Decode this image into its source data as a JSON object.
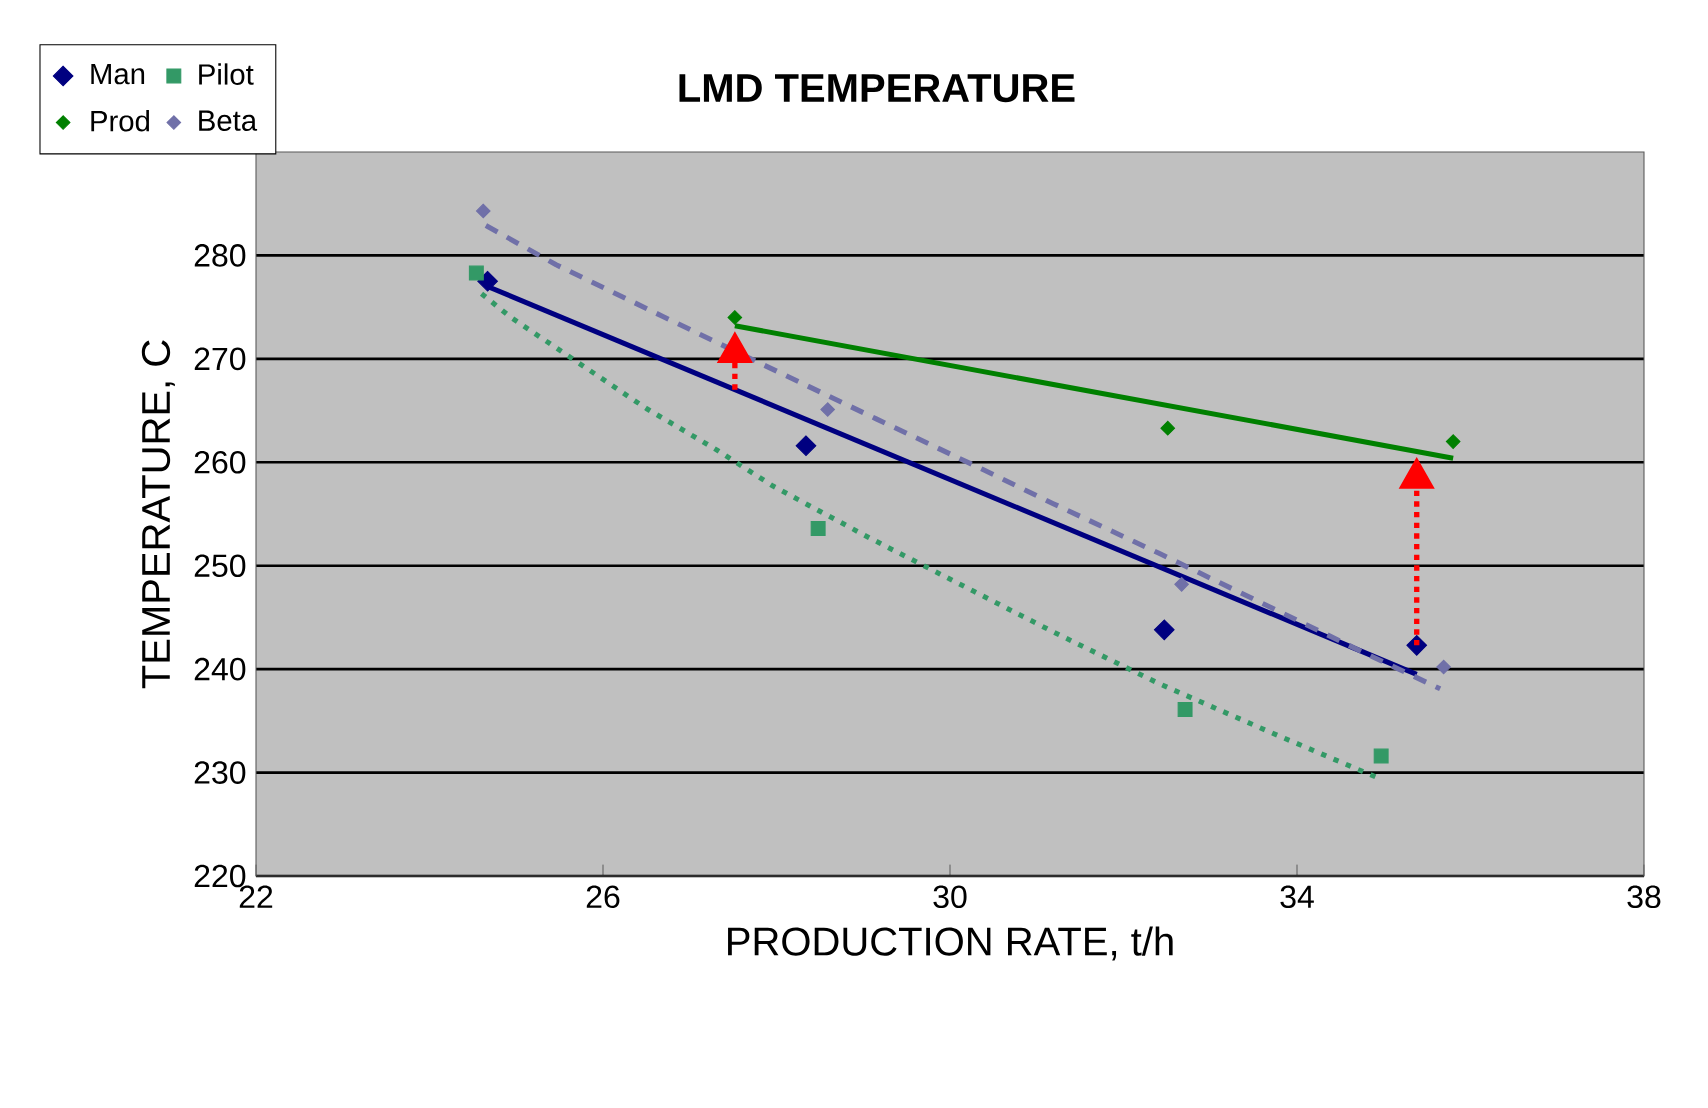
{
  "chart_data": {
    "type": "scatter",
    "title": "LMD TEMPERATURE",
    "xlabel": "PRODUCTION RATE, t/h",
    "ylabel": "TEMPERATURE, C",
    "xlim": [
      22,
      38
    ],
    "xticks": [
      22,
      26,
      30,
      34,
      38
    ],
    "ylim": [
      220,
      290
    ],
    "yticks": [
      220,
      230,
      240,
      250,
      260,
      270,
      280
    ],
    "grid": "y",
    "legend": "top left",
    "series": [
      {
        "name": "Man",
        "marker": "diamond",
        "color": "#000080",
        "x": [
          24.67,
          28.34,
          32.47,
          35.38
        ],
        "values": [
          277.5,
          261.6,
          243.8,
          242.3
        ]
      },
      {
        "name": "Pilot",
        "marker": "square",
        "color": "#339966",
        "x": [
          24.54,
          28.48,
          32.71,
          34.97
        ],
        "values": [
          278.3,
          253.6,
          236.1,
          231.6
        ]
      },
      {
        "name": "Prod",
        "marker": "diamond",
        "color": "#008000",
        "x": [
          27.52,
          32.51,
          35.8
        ],
        "values": [
          274.0,
          263.3,
          262.0
        ]
      },
      {
        "name": "Beta",
        "marker": "diamond",
        "color": "#7070a8",
        "x": [
          24.62,
          28.59,
          32.67,
          35.69
        ],
        "values": [
          284.3,
          265.1,
          248.2,
          240.2
        ]
      },
      {
        "type": "line",
        "line_style": "solid",
        "color": "#000080",
        "x": [
          24.67,
          35.38
        ],
        "values": [
          277.0,
          239.5
        ]
      },
      {
        "type": "line",
        "line_style": "dotted",
        "color": "#339966",
        "x": [
          24.6,
          24.94,
          25.72,
          26.5,
          27.31,
          27.96,
          29.07,
          30.28,
          31.19,
          32.41,
          33.72,
          34.93
        ],
        "values": [
          276.3,
          274.0,
          269.6,
          265.2,
          261.2,
          257.7,
          252.7,
          247.5,
          243.6,
          238.6,
          233.8,
          229.5
        ]
      },
      {
        "type": "line",
        "line_style": "solid",
        "color": "#008000",
        "x": [
          27.52,
          35.8
        ],
        "values": [
          273.2,
          260.4
        ]
      },
      {
        "type": "line",
        "line_style": "dashed",
        "color": "#7070a8",
        "x": [
          24.65,
          25.46,
          26.69,
          27.88,
          29.15,
          30.38,
          31.19,
          32.41,
          33.64,
          34.87,
          35.65
        ],
        "values": [
          282.9,
          279.1,
          274.1,
          269.3,
          264.2,
          259.3,
          256.0,
          251.2,
          246.2,
          241.2,
          238.1
        ]
      }
    ]
  }
}
